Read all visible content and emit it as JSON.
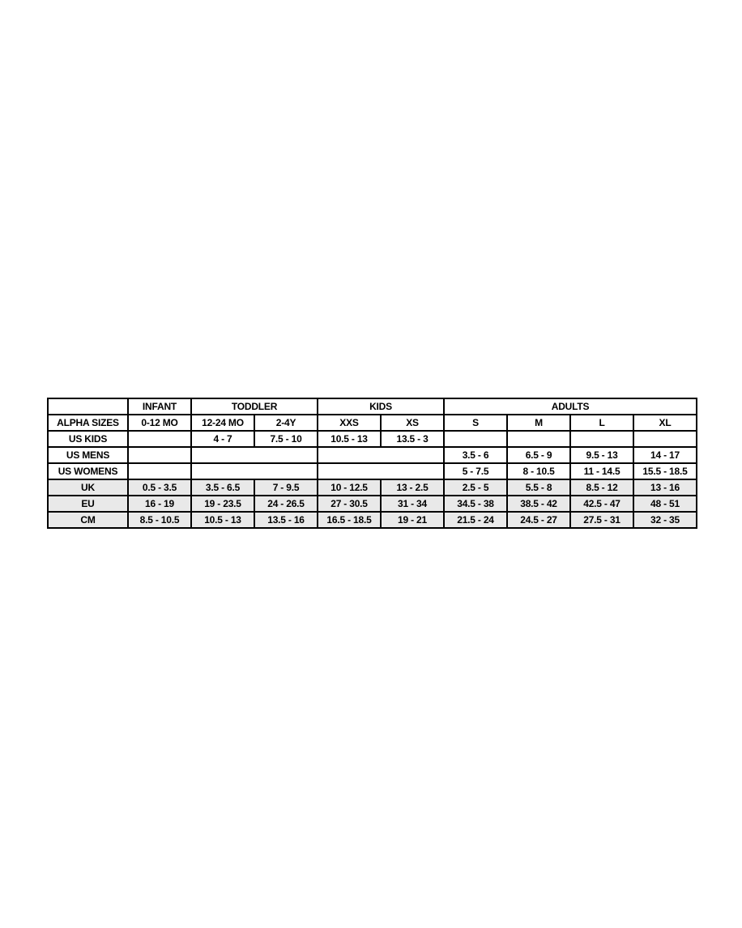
{
  "colors": {
    "canvas_bg": "#ffffff",
    "cell_bg": "#ffffff",
    "shaded_row_bg": "#e9e9e9",
    "border": "#000000",
    "text": "#000000"
  },
  "chart_data": {
    "type": "table",
    "column_groups": [
      {
        "label": "",
        "span": 1
      },
      {
        "label": "INFANT",
        "span": 1
      },
      {
        "label": "TODDLER",
        "span": 2
      },
      {
        "label": "KIDS",
        "span": 2
      },
      {
        "label": "ADULTS",
        "span": 4
      }
    ],
    "rows": [
      {
        "name": "group-header-row",
        "shaded": false,
        "header": true,
        "cells": [
          {
            "text": "",
            "name": "corner-cell"
          },
          {
            "text": "INFANT",
            "name": "group-header-infant"
          },
          {
            "text": "TODDLER",
            "colspan": 2,
            "name": "group-header-toddler"
          },
          {
            "text": "KIDS",
            "colspan": 2,
            "name": "group-header-kids"
          },
          {
            "text": "ADULTS",
            "colspan": 4,
            "name": "group-header-adults"
          }
        ]
      },
      {
        "name": "alpha-sizes-row",
        "shaded": false,
        "header": true,
        "cells": [
          {
            "text": "ALPHA SIZES",
            "name": "row-label-alpha-sizes"
          },
          {
            "text": "0-12 MO",
            "name": "col-header-0-12-mo"
          },
          {
            "text": "12-24 MO",
            "name": "col-header-12-24-mo"
          },
          {
            "text": "2-4Y",
            "name": "col-header-2-4y"
          },
          {
            "text": "XXS",
            "name": "col-header-xxs"
          },
          {
            "text": "XS",
            "name": "col-header-xs"
          },
          {
            "text": "S",
            "name": "col-header-s"
          },
          {
            "text": "M",
            "name": "col-header-m"
          },
          {
            "text": "L",
            "name": "col-header-l"
          },
          {
            "text": "XL",
            "name": "col-header-xl"
          }
        ]
      },
      {
        "name": "us-kids-row",
        "shaded": false,
        "cells": [
          {
            "text": "US KIDS",
            "name": "row-label-us-kids"
          },
          {
            "text": ""
          },
          {
            "text": "4 - 7"
          },
          {
            "text": "7.5 - 10"
          },
          {
            "text": "10.5 - 13"
          },
          {
            "text": "13.5 - 3"
          },
          {
            "text": ""
          },
          {
            "text": ""
          },
          {
            "text": ""
          },
          {
            "text": ""
          }
        ]
      },
      {
        "name": "us-mens-row",
        "shaded": false,
        "cells": [
          {
            "text": "US MENS",
            "name": "row-label-us-mens"
          },
          {
            "text": ""
          },
          {
            "text": "",
            "colspan": 2
          },
          {
            "text": "",
            "colspan": 2
          },
          {
            "text": "3.5 - 6"
          },
          {
            "text": "6.5 - 9"
          },
          {
            "text": "9.5 - 13"
          },
          {
            "text": "14 - 17"
          }
        ]
      },
      {
        "name": "us-womens-row",
        "shaded": false,
        "cells": [
          {
            "text": "US WOMENS",
            "name": "row-label-us-womens"
          },
          {
            "text": ""
          },
          {
            "text": "",
            "colspan": 2
          },
          {
            "text": "",
            "colspan": 2
          },
          {
            "text": "5 - 7.5"
          },
          {
            "text": "8 - 10.5"
          },
          {
            "text": "11 - 14.5"
          },
          {
            "text": "15.5 - 18.5"
          }
        ]
      },
      {
        "name": "uk-row",
        "shaded": true,
        "cells": [
          {
            "text": "UK",
            "name": "row-label-uk"
          },
          {
            "text": "0.5 - 3.5"
          },
          {
            "text": "3.5 - 6.5"
          },
          {
            "text": "7 - 9.5"
          },
          {
            "text": "10 - 12.5"
          },
          {
            "text": "13 - 2.5"
          },
          {
            "text": "2.5 - 5"
          },
          {
            "text": "5.5 - 8"
          },
          {
            "text": "8.5 - 12"
          },
          {
            "text": "13 - 16"
          }
        ]
      },
      {
        "name": "eu-row",
        "shaded": true,
        "cells": [
          {
            "text": "EU",
            "name": "row-label-eu"
          },
          {
            "text": "16 - 19"
          },
          {
            "text": "19 - 23.5"
          },
          {
            "text": "24 - 26.5"
          },
          {
            "text": "27 - 30.5"
          },
          {
            "text": "31 - 34"
          },
          {
            "text": "34.5 - 38"
          },
          {
            "text": "38.5 - 42"
          },
          {
            "text": "42.5 - 47"
          },
          {
            "text": "48 - 51"
          }
        ]
      },
      {
        "name": "cm-row",
        "shaded": true,
        "cells": [
          {
            "text": "CM",
            "name": "row-label-cm"
          },
          {
            "text": "8.5 - 10.5"
          },
          {
            "text": "10.5 - 13"
          },
          {
            "text": "13.5 - 16"
          },
          {
            "text": "16.5 - 18.5"
          },
          {
            "text": "19 - 21"
          },
          {
            "text": "21.5 - 24"
          },
          {
            "text": "24.5 - 27"
          },
          {
            "text": "27.5 - 31"
          },
          {
            "text": "32 - 35"
          }
        ]
      }
    ]
  }
}
